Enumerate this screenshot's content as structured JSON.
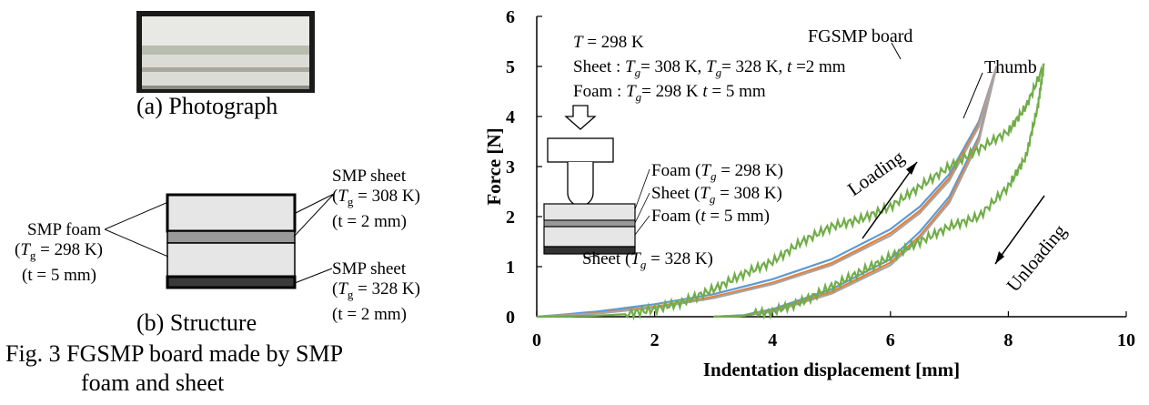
{
  "left_panel": {
    "photo_caption": "(a) Photograph",
    "structure_caption": "(b) Structure",
    "figure_caption_line1": "Fig. 3 FGSMP board made by SMP",
    "figure_caption_line2": "foam and sheet",
    "foam_label": {
      "line1": "SMP foam",
      "tg_prefix": "(",
      "tg_var": "T",
      "tg_sub": "g",
      "tg_value": " = 298 K)",
      "t_line": "(t = 5 mm)"
    },
    "sheet_top_label": {
      "line1": "SMP sheet",
      "tg_prefix": "(",
      "tg_var": "T",
      "tg_sub": "g",
      "tg_value": " = 308 K)",
      "t_line": "(t = 2 mm)"
    },
    "sheet_bottom_label": {
      "line1": "SMP sheet",
      "tg_prefix": "(",
      "tg_var": "T",
      "tg_sub": "g",
      "tg_value": " = 328 K)",
      "t_line": "(t = 2 mm)"
    }
  },
  "chart_data": {
    "type": "line",
    "xlabel": "Indentation displacement [mm]",
    "ylabel": "Force [N]",
    "xlim": [
      0,
      10
    ],
    "ylim": [
      0,
      6
    ],
    "xticks": [
      "0",
      "2",
      "4",
      "6",
      "8",
      "10"
    ],
    "yticks": [
      "0",
      "1",
      "2",
      "3",
      "4",
      "5",
      "6"
    ],
    "grid": false,
    "series": [
      {
        "name": "FGSMP board",
        "color": "#5b9bd5",
        "loading": [
          [
            0,
            0
          ],
          [
            1,
            0.1
          ],
          [
            2,
            0.25
          ],
          [
            3,
            0.45
          ],
          [
            4,
            0.75
          ],
          [
            5,
            1.15
          ],
          [
            6,
            1.75
          ],
          [
            6.5,
            2.2
          ],
          [
            7,
            2.85
          ],
          [
            7.5,
            3.9
          ],
          [
            7.8,
            5.0
          ]
        ],
        "unloading": [
          [
            7.8,
            5.0
          ],
          [
            7.5,
            3.6
          ],
          [
            7,
            2.4
          ],
          [
            6.5,
            1.7
          ],
          [
            6,
            1.15
          ],
          [
            5,
            0.55
          ],
          [
            4,
            0.15
          ],
          [
            3.5,
            0.03
          ],
          [
            3,
            0.0
          ]
        ]
      },
      {
        "color": "#ed7d31",
        "loading": [
          [
            0,
            0
          ],
          [
            1,
            0.07
          ],
          [
            2,
            0.2
          ],
          [
            3,
            0.4
          ],
          [
            4,
            0.68
          ],
          [
            5,
            1.07
          ],
          [
            6,
            1.67
          ],
          [
            6.5,
            2.12
          ],
          [
            7,
            2.78
          ],
          [
            7.5,
            3.85
          ],
          [
            7.8,
            5.0
          ]
        ],
        "unloading": [
          [
            7.8,
            5.0
          ],
          [
            7.5,
            3.55
          ],
          [
            7,
            2.33
          ],
          [
            6.5,
            1.62
          ],
          [
            6,
            1.08
          ],
          [
            5,
            0.5
          ],
          [
            4,
            0.12
          ],
          [
            3.5,
            0.02
          ],
          [
            3,
            0.0
          ]
        ]
      },
      {
        "color": "#a5a5a5",
        "loading": [
          [
            0,
            0
          ],
          [
            1,
            0.06
          ],
          [
            2,
            0.18
          ],
          [
            3,
            0.37
          ],
          [
            4,
            0.65
          ],
          [
            5,
            1.03
          ],
          [
            6,
            1.62
          ],
          [
            6.5,
            2.07
          ],
          [
            7,
            2.72
          ],
          [
            7.5,
            3.8
          ],
          [
            7.8,
            5.0
          ]
        ],
        "unloading": [
          [
            7.8,
            5.0
          ],
          [
            7.5,
            3.5
          ],
          [
            7,
            2.28
          ],
          [
            6.5,
            1.57
          ],
          [
            6,
            1.03
          ],
          [
            5,
            0.46
          ],
          [
            4,
            0.1
          ],
          [
            3.5,
            0.02
          ],
          [
            3,
            0.0
          ]
        ]
      },
      {
        "name": "Thumb",
        "color": "#70ad47",
        "loading": [
          [
            0,
            0
          ],
          [
            1,
            0.02
          ],
          [
            1.5,
            0.05
          ],
          [
            2,
            0.15
          ],
          [
            2.5,
            0.3
          ],
          [
            3,
            0.55
          ],
          [
            3.5,
            0.85
          ],
          [
            4,
            1.1
          ],
          [
            4.5,
            1.5
          ],
          [
            5,
            1.8
          ],
          [
            5.5,
            1.95
          ],
          [
            6,
            2.2
          ],
          [
            6.5,
            2.6
          ],
          [
            7,
            3.0
          ],
          [
            7.5,
            3.35
          ],
          [
            8,
            3.7
          ],
          [
            8.3,
            4.2
          ],
          [
            8.6,
            5.0
          ]
        ],
        "unloading": [
          [
            8.6,
            5.0
          ],
          [
            8.5,
            4.2
          ],
          [
            8.3,
            3.2
          ],
          [
            8.0,
            2.6
          ],
          [
            7.5,
            2.0
          ],
          [
            7,
            1.8
          ],
          [
            6.5,
            1.5
          ],
          [
            6,
            1.2
          ],
          [
            5.5,
            0.9
          ],
          [
            5,
            0.6
          ],
          [
            4.5,
            0.3
          ],
          [
            4,
            0.1
          ],
          [
            3.5,
            0.02
          ],
          [
            3,
            0.0
          ]
        ]
      }
    ],
    "annotations": {
      "temperature": {
        "var": "T",
        "value": " = 298 K"
      },
      "sheet_line": {
        "prefix": "Sheet : ",
        "var1": "T",
        "sub1": "g",
        "val1": "= 308 K, ",
        "var2": "T",
        "sub2": "g",
        "val2": "= 328 K, ",
        "var3": "t",
        "val3": " =2 mm"
      },
      "foam_line": {
        "prefix": "Foam : ",
        "var1": "T",
        "sub1": "g",
        "val1": "= 298 K  ",
        "var2": "t",
        "val2": " = 5 mm"
      },
      "series_label_board": "FGSMP board",
      "series_label_thumb": "Thumb",
      "loading": "Loading",
      "unloading": "Unloading",
      "inset": {
        "foam_top": {
          "prefix": "Foam (",
          "var": "T",
          "sub": "g",
          "val": " = 298 K)"
        },
        "sheet_mid": {
          "prefix": "Sheet (",
          "var": "T",
          "sub": "g",
          "val": " = 308 K)"
        },
        "foam_bottom": {
          "prefix": "Foam (",
          "var": "t",
          "val": " = 5 mm)"
        },
        "sheet_bottom": {
          "prefix": "Sheet (",
          "var": "T",
          "sub": "g",
          "val": " = 328 K)"
        }
      }
    }
  }
}
